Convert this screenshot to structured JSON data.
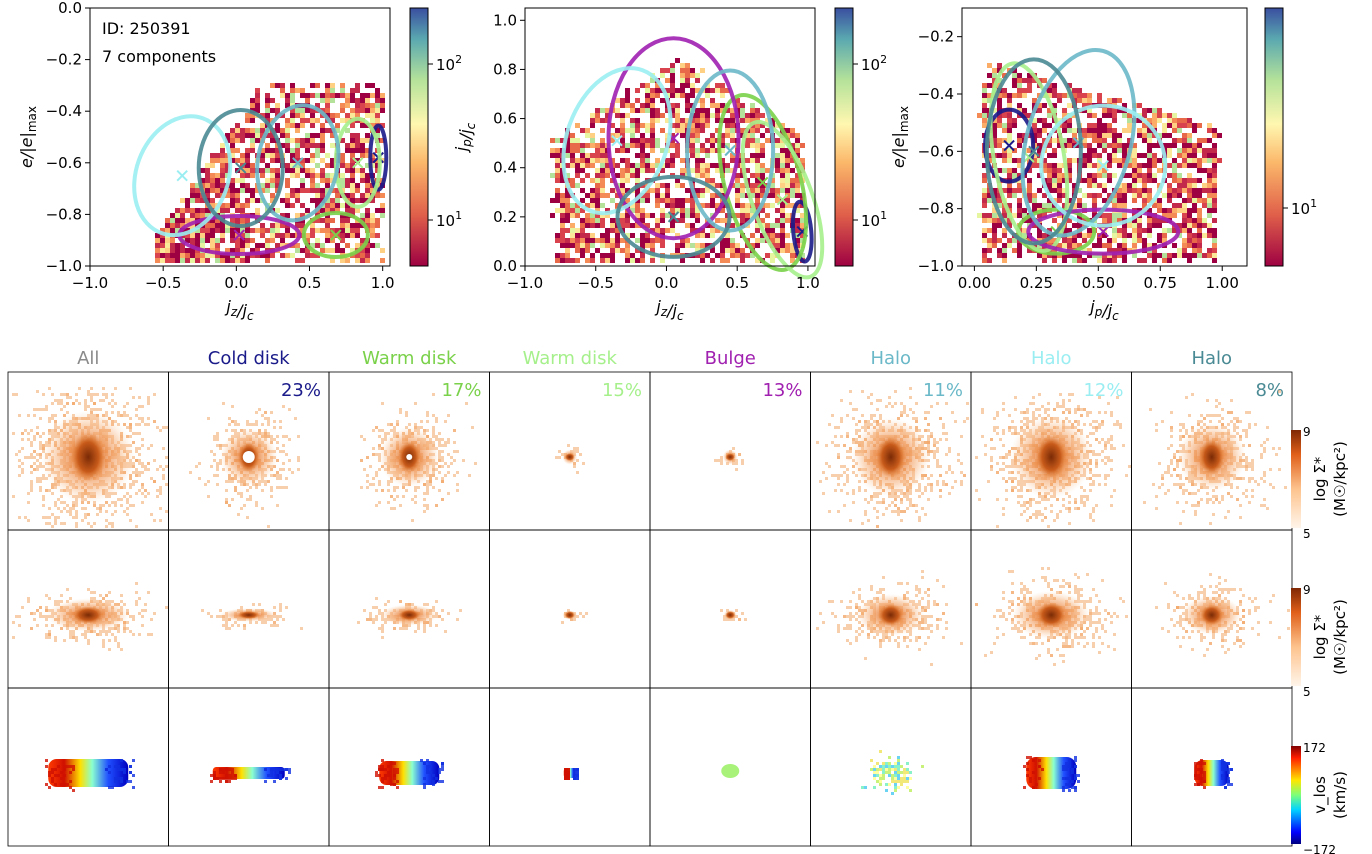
{
  "chart_data": [
    {
      "type": "heatmap",
      "id_label": "ID: 250391",
      "components_label": "7 components",
      "xlabel": "j_z/j_c",
      "ylabel": "e/|e|_max",
      "xlim": [
        -1.0,
        1.05
      ],
      "ylim": [
        -1.0,
        0.0
      ],
      "xticks": [
        "−1.0",
        "−0.5",
        "0.0",
        "0.5",
        "1.0"
      ],
      "yticks": [
        "0.0",
        "−0.2",
        "−0.4",
        "−0.6",
        "−0.8",
        "−1.0"
      ],
      "colorbar_ticks": [
        "10^2",
        "10^1"
      ],
      "markers": [
        {
          "component": "cold_disk",
          "x": 0.97,
          "y": -0.58
        },
        {
          "component": "warm_disk_1",
          "x": 0.68,
          "y": -0.88
        },
        {
          "component": "warm_disk_2",
          "x": 0.83,
          "y": -0.6
        },
        {
          "component": "bulge",
          "x": 0.02,
          "y": -0.88
        },
        {
          "component": "halo_1",
          "x": 0.42,
          "y": -0.6
        },
        {
          "component": "halo_2",
          "x": -0.37,
          "y": -0.65
        },
        {
          "component": "halo_3",
          "x": 0.03,
          "y": -0.62
        }
      ]
    },
    {
      "type": "heatmap",
      "xlabel": "j_z/j_c",
      "ylabel": "j_p/j_c",
      "xlim": [
        -1.0,
        1.05
      ],
      "ylim": [
        0.0,
        1.05
      ],
      "xticks": [
        "−1.0",
        "−0.5",
        "0.0",
        "0.5",
        "1.0"
      ],
      "yticks": [
        "1.0",
        "0.8",
        "0.6",
        "0.4",
        "0.2",
        "0.0"
      ],
      "colorbar_ticks": [
        "10^2",
        "10^1"
      ],
      "markers": [
        {
          "component": "cold_disk",
          "x": 0.96,
          "y": 0.14
        },
        {
          "component": "warm_disk_1",
          "x": 0.68,
          "y": 0.34
        },
        {
          "component": "warm_disk_2",
          "x": 0.82,
          "y": 0.27
        },
        {
          "component": "bulge",
          "x": 0.05,
          "y": 0.52
        },
        {
          "component": "halo_1",
          "x": 0.45,
          "y": 0.47
        },
        {
          "component": "halo_2",
          "x": -0.35,
          "y": 0.51
        },
        {
          "component": "halo_3",
          "x": 0.05,
          "y": 0.2
        }
      ]
    },
    {
      "type": "heatmap",
      "xlabel": "j_p/j_c",
      "ylabel": "e/|e|_max",
      "xlim": [
        -0.05,
        1.1
      ],
      "ylim": [
        -1.0,
        -0.1
      ],
      "xticks": [
        "0.00",
        "0.25",
        "0.50",
        "0.75",
        "1.00"
      ],
      "yticks": [
        "−0.2",
        "−0.4",
        "−0.6",
        "−0.8",
        "−1.0"
      ],
      "colorbar_ticks": [
        "10^1"
      ],
      "markers": [
        {
          "component": "cold_disk",
          "x": 0.14,
          "y": -0.58
        },
        {
          "component": "warm_disk_1",
          "x": 0.33,
          "y": -0.88
        },
        {
          "component": "warm_disk_2",
          "x": 0.22,
          "y": -0.62
        },
        {
          "component": "bulge",
          "x": 0.52,
          "y": -0.88
        },
        {
          "component": "halo_1",
          "x": 0.42,
          "y": -0.57
        },
        {
          "component": "halo_2",
          "x": 0.52,
          "y": -0.65
        },
        {
          "component": "halo_3",
          "x": 0.24,
          "y": -0.6
        }
      ]
    }
  ],
  "components": [
    {
      "key": "all",
      "title": "All",
      "percent": "",
      "color": "#8a8a8a"
    },
    {
      "key": "cold_disk",
      "title": "Cold disk",
      "percent": "23%",
      "color": "#1a1a8a"
    },
    {
      "key": "warm_disk_1",
      "title": "Warm disk",
      "percent": "17%",
      "color": "#7ad14a"
    },
    {
      "key": "warm_disk_2",
      "title": "Warm disk",
      "percent": "15%",
      "color": "#a6f08c"
    },
    {
      "key": "bulge",
      "title": "Bulge",
      "percent": "13%",
      "color": "#a020b0"
    },
    {
      "key": "halo_1",
      "title": "Halo",
      "percent": "11%",
      "color": "#6ab8c8"
    },
    {
      "key": "halo_2",
      "title": "Halo",
      "percent": "12%",
      "color": "#9aeef2"
    },
    {
      "key": "halo_3",
      "title": "Halo",
      "percent": "8%",
      "color": "#4a8a94"
    }
  ],
  "map_rows": [
    {
      "key": "faceon",
      "label_line1": "log Σ*",
      "label_line2": "(M☉/kpc²)",
      "cb_max": "9",
      "cb_min": "5"
    },
    {
      "key": "edgeon",
      "label_line1": "log Σ*",
      "label_line2": "(M☉/kpc²)",
      "cb_max": "9",
      "cb_min": "5"
    },
    {
      "key": "velocity",
      "label_line1": "v_los",
      "label_line2": "(km/s)",
      "cb_max": "172",
      "cb_min": "−172"
    }
  ]
}
